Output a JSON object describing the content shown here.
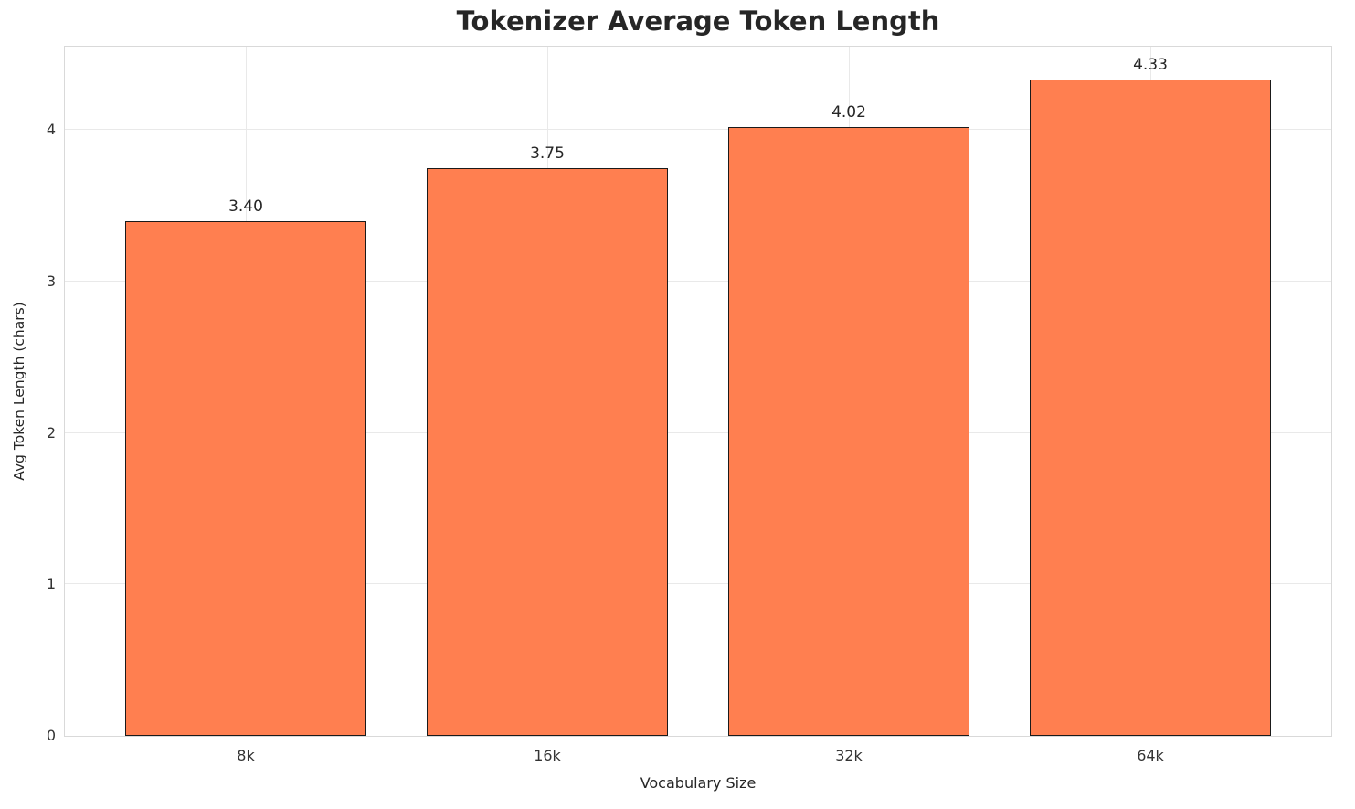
{
  "chart_data": {
    "type": "bar",
    "title": "Tokenizer Average Token Length",
    "xlabel": "Vocabulary Size",
    "ylabel": "Avg Token Length (chars)",
    "categories": [
      "8k",
      "16k",
      "32k",
      "64k"
    ],
    "values": [
      3.4,
      3.75,
      4.02,
      4.33
    ],
    "bar_labels": [
      "3.40",
      "3.75",
      "4.02",
      "4.33"
    ],
    "yticks": [
      0,
      1,
      2,
      3,
      4
    ],
    "ylim": [
      0,
      4.55
    ],
    "xlim": [
      -0.6,
      3.6
    ],
    "bar_width": 0.8,
    "grid": true,
    "legend": "none",
    "bar_color": "#FF7F50",
    "bar_edge_color": "#1a1a1a",
    "grid_color": "#e9e9e9",
    "spine_color": "#d9d9d9",
    "text_color": "#262626"
  }
}
